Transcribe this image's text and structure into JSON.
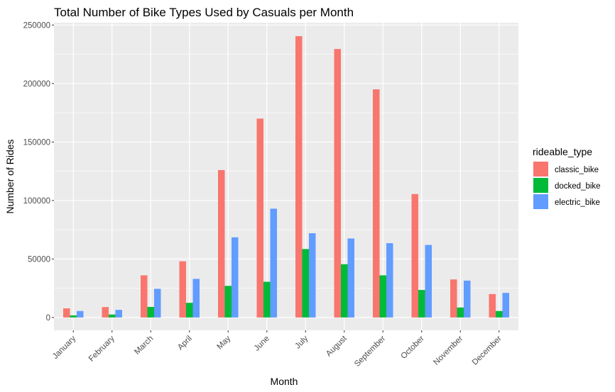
{
  "chart_data": {
    "type": "bar",
    "title": "Total Number of Bike Types Used by Casuals per Month",
    "xlabel": "Month",
    "ylabel": "Number of Rides",
    "ylim": [
      -11000,
      252000
    ],
    "yticks": [
      0,
      50000,
      100000,
      150000,
      200000,
      250000
    ],
    "ytick_labels": [
      "0",
      "50000",
      "100000",
      "150000",
      "200000",
      "250000"
    ],
    "grid": true,
    "legend_position": "right",
    "legend_title": "rideable_type",
    "categories": [
      "January",
      "February",
      "March",
      "April",
      "May",
      "June",
      "July",
      "August",
      "September",
      "October",
      "November",
      "December"
    ],
    "series": [
      {
        "name": "classic_bike",
        "color": "#F8766D",
        "values": [
          7800,
          8900,
          36000,
          48000,
          126000,
          170000,
          240500,
          229500,
          195000,
          105500,
          32500,
          20000
        ]
      },
      {
        "name": "docked_bike",
        "color": "#00BA38",
        "values": [
          1800,
          2500,
          9000,
          12500,
          27000,
          30500,
          58500,
          45500,
          36000,
          23500,
          8500,
          5500
        ]
      },
      {
        "name": "electric_bike",
        "color": "#619CFF",
        "values": [
          5500,
          6500,
          24500,
          33000,
          68500,
          93000,
          72000,
          67500,
          63500,
          62000,
          31500,
          21000
        ]
      }
    ]
  }
}
